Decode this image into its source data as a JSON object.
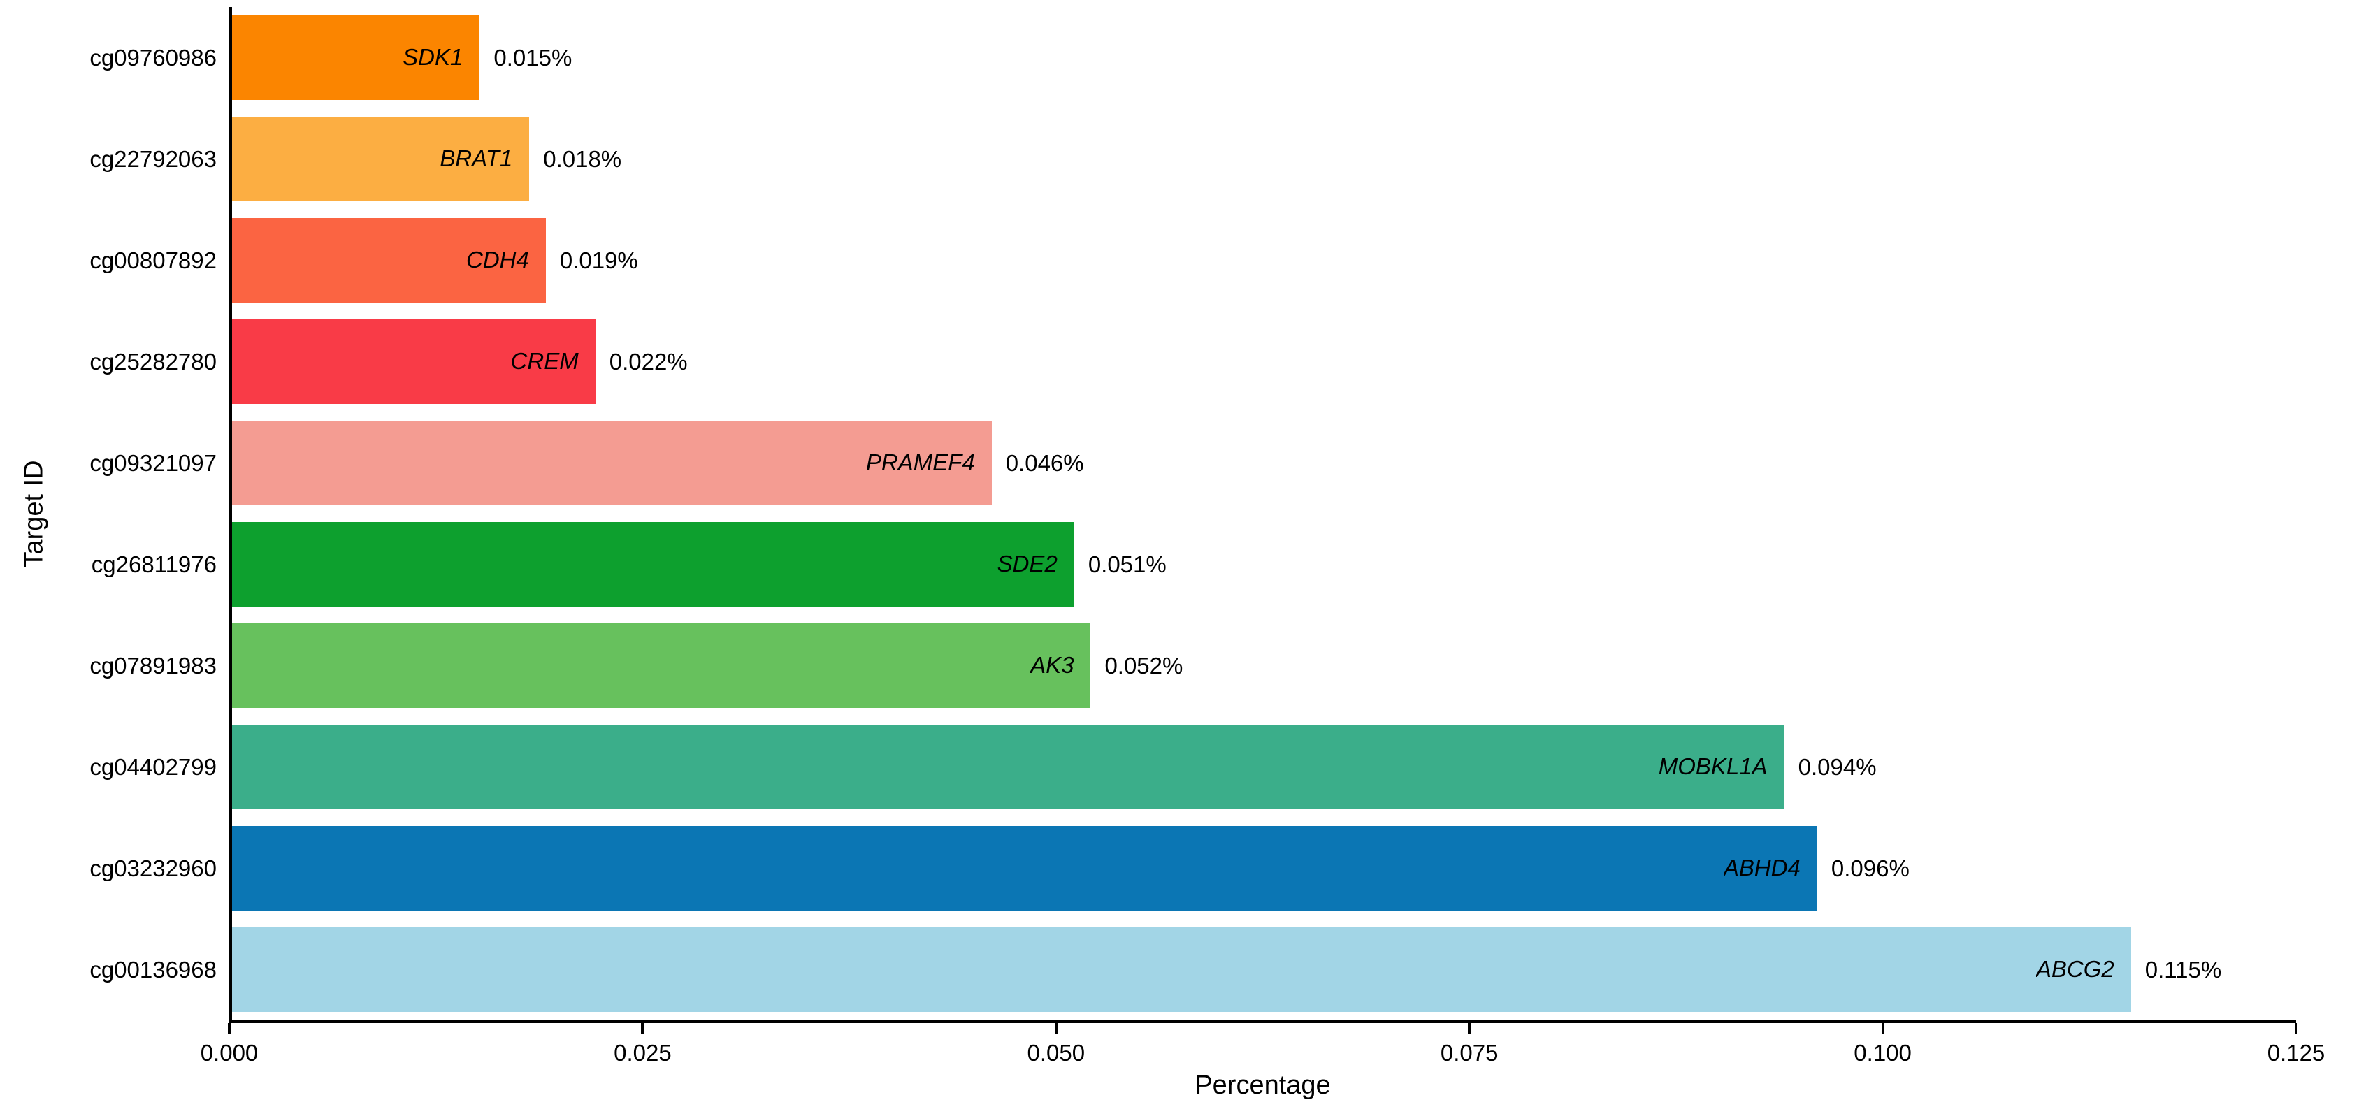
{
  "chart_data": {
    "type": "bar",
    "orientation": "horizontal",
    "title": "",
    "xlabel": "Percentage",
    "ylabel": "Target ID",
    "xlim": [
      0,
      0.125
    ],
    "grid": false,
    "legend": false,
    "background_color": "#ffffff",
    "axis_color": "#000000",
    "x_ticks": [
      {
        "label": "0.000",
        "value": 0.0
      },
      {
        "label": "0.025",
        "value": 0.025
      },
      {
        "label": "0.050",
        "value": 0.05
      },
      {
        "label": "0.075",
        "value": 0.075
      },
      {
        "label": "0.100",
        "value": 0.1
      },
      {
        "label": "0.125",
        "value": 0.125
      }
    ],
    "bars": [
      {
        "target_id": "cg09760986",
        "gene": "SDK1",
        "value": 0.015,
        "value_label": "0.015%",
        "color": "#FB8500"
      },
      {
        "target_id": "cg22792063",
        "gene": "BRAT1",
        "value": 0.018,
        "value_label": "0.018%",
        "color": "#FCAE42"
      },
      {
        "target_id": "cg00807892",
        "gene": "CDH4",
        "value": 0.019,
        "value_label": "0.019%",
        "color": "#FB6442"
      },
      {
        "target_id": "cg25282780",
        "gene": "CREM",
        "value": 0.022,
        "value_label": "0.022%",
        "color": "#F93B47"
      },
      {
        "target_id": "cg09321097",
        "gene": "PRAMEF4",
        "value": 0.046,
        "value_label": "0.046%",
        "color": "#F49C92"
      },
      {
        "target_id": "cg26811976",
        "gene": "SDE2",
        "value": 0.051,
        "value_label": "0.051%",
        "color": "#0DA02E"
      },
      {
        "target_id": "cg07891983",
        "gene": "AK3",
        "value": 0.052,
        "value_label": "0.052%",
        "color": "#67C15D"
      },
      {
        "target_id": "cg04402799",
        "gene": "MOBKL1A",
        "value": 0.094,
        "value_label": "0.094%",
        "color": "#3BAE8A"
      },
      {
        "target_id": "cg03232960",
        "gene": "ABHD4",
        "value": 0.096,
        "value_label": "0.096%",
        "color": "#0B76B4"
      },
      {
        "target_id": "cg00136968",
        "gene": "ABCG2",
        "value": 0.115,
        "value_label": "0.115%",
        "color": "#A2D5E6"
      }
    ]
  }
}
